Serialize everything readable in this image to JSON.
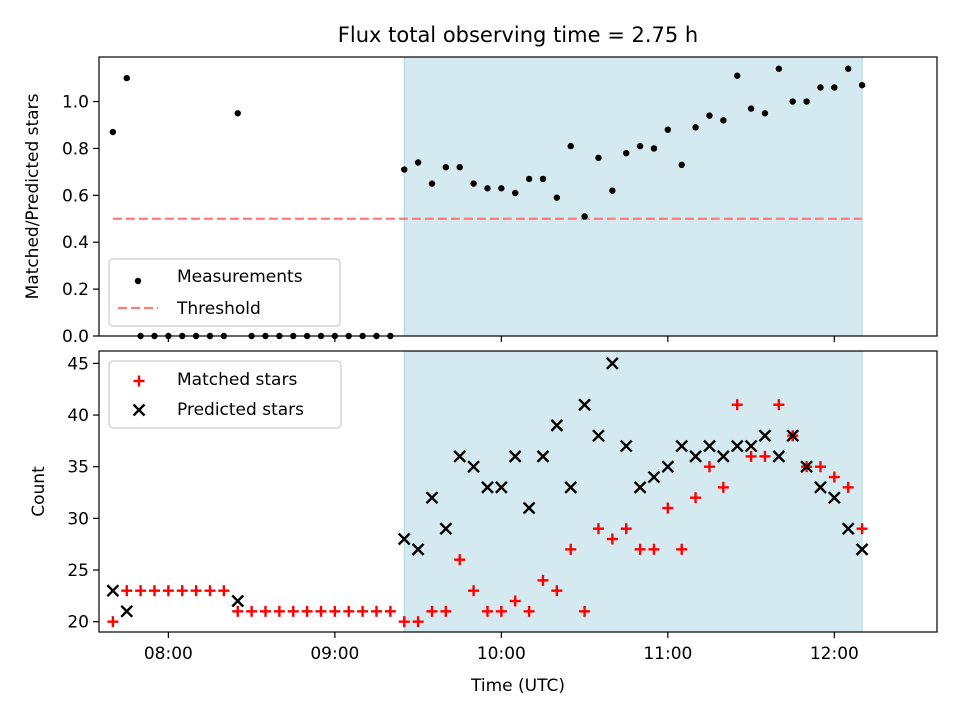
{
  "title": "Flux total observing time = 2.75 h",
  "colors": {
    "shade": "#d4eaf0",
    "threshold": "#ff7b7b",
    "matched": "#ff0000",
    "predicted": "#000000",
    "measurement": "#000000"
  },
  "chart_data": [
    {
      "type": "scatter",
      "panel": "top",
      "ylabel": "Matched/Predicted stars",
      "ylim": [
        0,
        1.19
      ],
      "yticks": [
        0.0,
        0.2,
        0.4,
        0.6,
        0.8,
        1.0
      ],
      "ytick_labels": [
        "0.0",
        "0.2",
        "0.4",
        "0.6",
        "0.8",
        "1.0"
      ],
      "xlim": [
        "07:35",
        "12:37"
      ],
      "xticks": [
        "08:00",
        "09:00",
        "10:00",
        "11:00",
        "12:00"
      ],
      "shaded_region": [
        "09:25",
        "12:10"
      ],
      "legend": {
        "position": "lower-left",
        "entries": [
          "Measurements",
          "Threshold"
        ]
      },
      "series": [
        {
          "name": "Measurements",
          "marker": "dot",
          "x": [
            "07:40",
            "07:45",
            "07:50",
            "07:55",
            "08:00",
            "08:05",
            "08:10",
            "08:15",
            "08:20",
            "08:25",
            "08:30",
            "08:35",
            "08:40",
            "08:45",
            "08:50",
            "08:55",
            "09:00",
            "09:05",
            "09:10",
            "09:15",
            "09:20",
            "09:25",
            "09:30",
            "09:35",
            "09:40",
            "09:45",
            "09:50",
            "09:55",
            "10:00",
            "10:05",
            "10:10",
            "10:15",
            "10:20",
            "10:25",
            "10:30",
            "10:35",
            "10:40",
            "10:45",
            "10:50",
            "10:55",
            "11:00",
            "11:05",
            "11:10",
            "11:15",
            "11:20",
            "11:25",
            "11:30",
            "11:35",
            "11:40",
            "11:45",
            "11:50",
            "11:55",
            "12:00",
            "12:05",
            "12:10"
          ],
          "y": [
            0.87,
            1.1,
            0.0,
            0.0,
            0.0,
            0.0,
            0.0,
            0.0,
            0.0,
            0.95,
            0.0,
            0.0,
            0.0,
            0.0,
            0.0,
            0.0,
            0.0,
            0.0,
            0.0,
            0.0,
            0.0,
            0.71,
            0.74,
            0.65,
            0.72,
            0.72,
            0.65,
            0.63,
            0.63,
            0.61,
            0.67,
            0.67,
            0.59,
            0.81,
            0.51,
            0.76,
            0.62,
            0.78,
            0.81,
            0.8,
            0.88,
            0.73,
            0.89,
            0.94,
            0.92,
            1.11,
            0.97,
            0.95,
            1.14,
            1.0,
            1.0,
            1.06,
            1.06,
            1.14,
            1.07
          ]
        },
        {
          "name": "Threshold",
          "style": "dashed",
          "x": [
            "07:40",
            "12:10"
          ],
          "y": [
            0.5,
            0.5
          ]
        }
      ]
    },
    {
      "type": "scatter",
      "panel": "bottom",
      "ylabel": "Count",
      "xlabel": "Time (UTC)",
      "ylim": [
        19.0,
        46.2
      ],
      "yticks": [
        20,
        25,
        30,
        35,
        40,
        45
      ],
      "ytick_labels": [
        "20",
        "25",
        "30",
        "35",
        "40",
        "45"
      ],
      "xlim": [
        "07:35",
        "12:37"
      ],
      "xticks": [
        "08:00",
        "09:00",
        "10:00",
        "11:00",
        "12:00"
      ],
      "shaded_region": [
        "09:25",
        "12:10"
      ],
      "legend": {
        "position": "upper-left",
        "entries": [
          "Matched stars",
          "Predicted stars"
        ]
      },
      "series": [
        {
          "name": "Matched stars",
          "marker": "plus",
          "x": [
            "07:40",
            "07:45",
            "07:50",
            "07:55",
            "08:00",
            "08:05",
            "08:10",
            "08:15",
            "08:20",
            "08:25",
            "08:30",
            "08:35",
            "08:40",
            "08:45",
            "08:50",
            "08:55",
            "09:00",
            "09:05",
            "09:10",
            "09:15",
            "09:20",
            "09:25",
            "09:30",
            "09:35",
            "09:40",
            "09:45",
            "09:50",
            "09:55",
            "10:00",
            "10:05",
            "10:10",
            "10:15",
            "10:20",
            "10:25",
            "10:30",
            "10:35",
            "10:40",
            "10:45",
            "10:50",
            "10:55",
            "11:00",
            "11:05",
            "11:10",
            "11:15",
            "11:20",
            "11:25",
            "11:30",
            "11:35",
            "11:40",
            "11:45",
            "11:50",
            "11:55",
            "12:00",
            "12:05",
            "12:10"
          ],
          "y": [
            20,
            23,
            23,
            23,
            23,
            23,
            23,
            23,
            23,
            21,
            21,
            21,
            21,
            21,
            21,
            21,
            21,
            21,
            21,
            21,
            21,
            20,
            20,
            21,
            21,
            26,
            23,
            21,
            21,
            22,
            21,
            24,
            23,
            27,
            21,
            29,
            28,
            29,
            27,
            27,
            31,
            27,
            32,
            35,
            33,
            41,
            36,
            36,
            41,
            38,
            35,
            35,
            34,
            33,
            29
          ]
        },
        {
          "name": "Predicted stars",
          "marker": "x",
          "x": [
            "07:40",
            "07:45",
            "08:25",
            "09:25",
            "09:30",
            "09:35",
            "09:40",
            "09:45",
            "09:50",
            "09:55",
            "10:00",
            "10:05",
            "10:10",
            "10:15",
            "10:20",
            "10:25",
            "10:30",
            "10:35",
            "10:40",
            "10:45",
            "10:50",
            "10:55",
            "11:00",
            "11:05",
            "11:10",
            "11:15",
            "11:20",
            "11:25",
            "11:30",
            "11:35",
            "11:40",
            "11:45",
            "11:50",
            "11:55",
            "12:00",
            "12:05",
            "12:10"
          ],
          "y": [
            23,
            21,
            22,
            28,
            27,
            32,
            29,
            36,
            35,
            33,
            33,
            36,
            31,
            36,
            39,
            33,
            41,
            38,
            45,
            37,
            33,
            34,
            35,
            37,
            36,
            37,
            36,
            37,
            37,
            38,
            36,
            38,
            35,
            33,
            32,
            29,
            27
          ]
        }
      ]
    }
  ]
}
